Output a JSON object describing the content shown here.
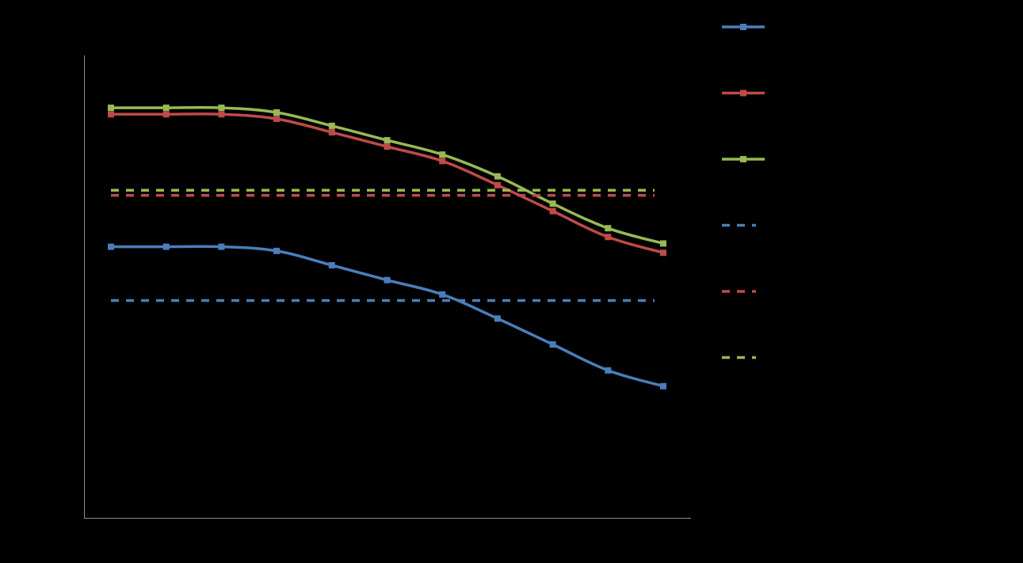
{
  "chart_data": {
    "type": "line",
    "x": [
      1,
      2,
      3,
      4,
      5,
      6,
      7,
      8,
      9,
      10,
      11
    ],
    "ylim": [
      0,
      100
    ],
    "grid": false,
    "legend_position": "right",
    "series": [
      {
        "color": "#4a7ebb",
        "style": "solid",
        "marker": "square",
        "values": [
          58.7,
          58.7,
          58.7,
          57.8,
          54.7,
          51.5,
          48.4,
          43.2,
          37.6,
          32.0,
          28.6
        ]
      },
      {
        "color": "#be4b48",
        "style": "solid",
        "marker": "square",
        "values": [
          87.3,
          87.3,
          87.3,
          86.3,
          83.4,
          80.3,
          77.2,
          72.0,
          66.4,
          60.8,
          57.4
        ]
      },
      {
        "color": "#98b954",
        "style": "solid",
        "marker": "square",
        "values": [
          88.7,
          88.7,
          88.7,
          87.7,
          84.8,
          81.7,
          78.6,
          73.9,
          68.0,
          62.7,
          59.4
        ]
      },
      {
        "color": "#4a7ebb",
        "style": "dashed",
        "values": [
          47.1,
          47.1,
          47.1,
          47.1,
          47.1,
          47.1,
          47.1,
          47.1,
          47.1,
          47.1,
          47.1
        ]
      },
      {
        "color": "#be4b48",
        "style": "dashed",
        "values": [
          69.8,
          69.8,
          69.8,
          69.8,
          69.8,
          69.8,
          69.8,
          69.8,
          69.8,
          69.8,
          69.8
        ]
      },
      {
        "color": "#98b954",
        "style": "dashed",
        "values": [
          70.9,
          70.9,
          70.9,
          70.9,
          70.9,
          70.9,
          70.9,
          70.9,
          70.9,
          70.9,
          70.9
        ]
      }
    ]
  }
}
